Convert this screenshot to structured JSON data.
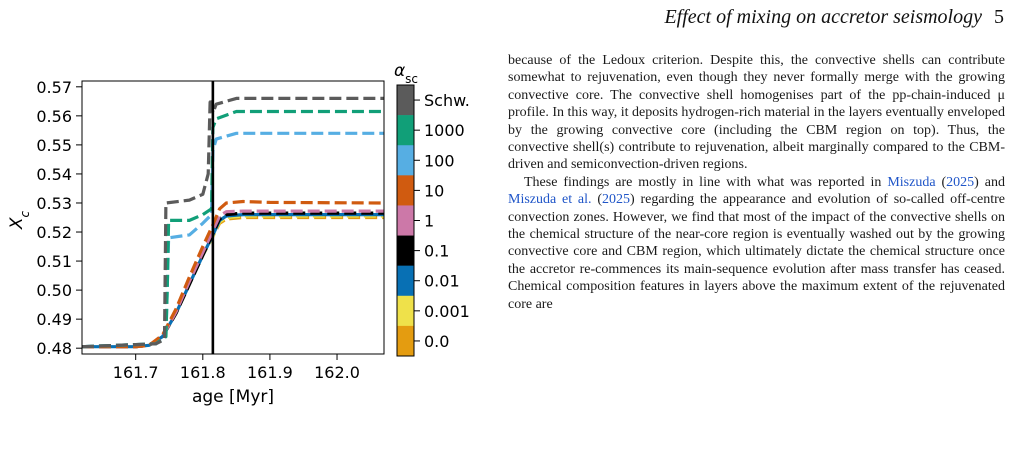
{
  "header": {
    "title": "Effect of mixing on accretor seismology",
    "page": "5"
  },
  "chart_data": {
    "type": "line",
    "xlabel": "age [Myr]",
    "ylabel": "X_c",
    "xlim": [
      161.62,
      162.07
    ],
    "ylim": [
      0.478,
      0.572
    ],
    "xticks": [
      161.7,
      161.8,
      161.9,
      162.0
    ],
    "xtick_labels": [
      "161.7",
      "161.8",
      "161.9",
      "162.0"
    ],
    "yticks": [
      0.48,
      0.49,
      0.5,
      0.51,
      0.52,
      0.53,
      0.54,
      0.55,
      0.56,
      0.57
    ],
    "ytick_labels": [
      "0.48",
      "0.49",
      "0.50",
      "0.51",
      "0.52",
      "0.53",
      "0.54",
      "0.55",
      "0.56",
      "0.57"
    ],
    "vline_x": 161.815,
    "colorbar": {
      "label": "α_sc",
      "labels": [
        "Schw.",
        "1000",
        "100",
        "10",
        "1",
        "0.1",
        "0.01",
        "0.001",
        "0.0"
      ],
      "colors": [
        "#5b5b5b",
        "#119f78",
        "#56aee3",
        "#d05b10",
        "#cc78a8",
        "#000000",
        "#0870b4",
        "#efe14a",
        "#e49c10"
      ]
    },
    "series": [
      {
        "name": "0.0",
        "color": "#e49c10",
        "style": "dashed",
        "x": [
          161.62,
          161.7,
          161.72,
          161.74,
          161.76,
          161.78,
          161.8,
          161.815,
          161.825,
          161.835,
          161.86,
          161.9,
          162.07
        ],
        "y": [
          0.4805,
          0.4805,
          0.481,
          0.484,
          0.492,
          0.502,
          0.512,
          0.5185,
          0.523,
          0.5245,
          0.525,
          0.525,
          0.525
        ]
      },
      {
        "name": "0.001",
        "color": "#efe14a",
        "style": "dashed",
        "x": [
          161.62,
          161.7,
          161.72,
          161.74,
          161.76,
          161.78,
          161.8,
          161.815,
          161.825,
          161.835,
          161.86,
          161.9,
          162.07
        ],
        "y": [
          0.4805,
          0.4805,
          0.481,
          0.484,
          0.492,
          0.502,
          0.512,
          0.5185,
          0.5235,
          0.525,
          0.5255,
          0.5255,
          0.5255
        ]
      },
      {
        "name": "0.01",
        "color": "#0870b4",
        "style": "solid",
        "x": [
          161.62,
          161.7,
          161.72,
          161.74,
          161.76,
          161.78,
          161.8,
          161.815,
          161.825,
          161.835,
          161.86,
          161.9,
          162.07
        ],
        "y": [
          0.4805,
          0.4805,
          0.481,
          0.484,
          0.492,
          0.502,
          0.512,
          0.519,
          0.524,
          0.5255,
          0.526,
          0.526,
          0.526
        ]
      },
      {
        "name": "0.1",
        "color": "#000000",
        "style": "dashed",
        "x": [
          161.62,
          161.7,
          161.72,
          161.74,
          161.76,
          161.78,
          161.8,
          161.815,
          161.825,
          161.835,
          161.86,
          161.9,
          162.07
        ],
        "y": [
          0.4805,
          0.4805,
          0.481,
          0.484,
          0.492,
          0.502,
          0.512,
          0.5195,
          0.5245,
          0.526,
          0.5265,
          0.5265,
          0.5265
        ]
      },
      {
        "name": "1",
        "color": "#cc78a8",
        "style": "dashed",
        "x": [
          161.62,
          161.7,
          161.72,
          161.74,
          161.76,
          161.78,
          161.8,
          161.815,
          161.825,
          161.835,
          161.86,
          161.9,
          162.07
        ],
        "y": [
          0.4805,
          0.4805,
          0.481,
          0.484,
          0.4925,
          0.503,
          0.513,
          0.5205,
          0.5255,
          0.527,
          0.5272,
          0.5272,
          0.5272
        ]
      },
      {
        "name": "10",
        "color": "#d05b10",
        "style": "dashed",
        "x": [
          161.62,
          161.7,
          161.72,
          161.74,
          161.76,
          161.78,
          161.8,
          161.815,
          161.825,
          161.835,
          161.86,
          161.9,
          162.07
        ],
        "y": [
          0.4805,
          0.4805,
          0.481,
          0.4845,
          0.4935,
          0.5045,
          0.515,
          0.5225,
          0.528,
          0.53,
          0.5305,
          0.5302,
          0.53
        ]
      },
      {
        "name": "100",
        "color": "#56aee3",
        "style": "dashed",
        "x": [
          161.62,
          161.73,
          161.745,
          161.747,
          161.749,
          161.78,
          161.8,
          161.813,
          161.815,
          161.82,
          161.85,
          161.9,
          162.07
        ],
        "y": [
          0.4805,
          0.4815,
          0.484,
          0.5,
          0.518,
          0.519,
          0.523,
          0.526,
          0.548,
          0.552,
          0.554,
          0.554,
          0.554
        ]
      },
      {
        "name": "1000",
        "color": "#119f78",
        "style": "dashed",
        "x": [
          161.62,
          161.73,
          161.745,
          161.747,
          161.749,
          161.78,
          161.8,
          161.813,
          161.815,
          161.82,
          161.85,
          161.9,
          162.07
        ],
        "y": [
          0.4805,
          0.4815,
          0.484,
          0.5,
          0.524,
          0.524,
          0.526,
          0.528,
          0.556,
          0.559,
          0.5615,
          0.5615,
          0.5615
        ]
      },
      {
        "name": "Schw.",
        "color": "#5b5b5b",
        "style": "dashed",
        "x": [
          161.62,
          161.73,
          161.743,
          161.745,
          161.78,
          161.8,
          161.808,
          161.811,
          161.815,
          161.82,
          161.85,
          161.9,
          162.07
        ],
        "y": [
          0.4805,
          0.4815,
          0.483,
          0.53,
          0.531,
          0.533,
          0.54,
          0.566,
          0.561,
          0.564,
          0.566,
          0.566,
          0.566
        ]
      }
    ]
  },
  "text": {
    "p1": "because of the Ledoux criterion. Despite this, the convective shells can contribute somewhat to rejuvenation, even though they never formally merge with the growing convective core. The convective shell homogenises part of the pp-chain-induced μ profile. In this way, it deposits hydrogen-rich material in the layers eventually enveloped by the growing convective core (including the CBM region on top). Thus, the convective shell(s) contribute to rejuvenation, albeit marginally compared to the CBM-driven and semiconvection-driven regions.",
    "p2_a": "These findings are mostly in line with what was reported in ",
    "cite1": "Miszuda",
    "p2_b": " (",
    "cite1_year": "2025",
    "p2_c": ") and ",
    "cite2": "Miszuda et al.",
    "p2_d": " (",
    "cite2_year": "2025",
    "p2_e": ") regarding the appearance and evolution of so-called off-centre convection zones. However, we find that most of the impact of the convective shells on the chemical structure of the near-core region is eventually washed out by the growing convective core and CBM region, which ultimately dictate the chemical structure once the accretor re-commences its main-sequence evolution after mass transfer has ceased. Chemical composition features in layers above the maximum extent of the rejuvenated core are"
  }
}
